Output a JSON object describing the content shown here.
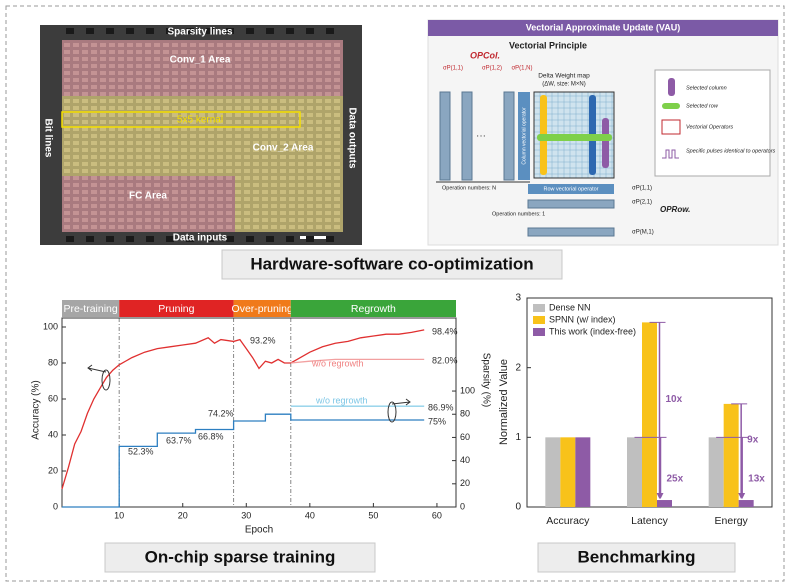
{
  "captions": [
    "Hardware-software co-optimization",
    "On-chip sparse training",
    "Benchmarking"
  ],
  "chip_photo": {
    "labels": [
      "Sparsity lines",
      "Conv_1 Area",
      "5x5 kernal",
      "Conv_2 Area",
      "Bit lines",
      "Data outputs",
      "FC Area",
      "Data inputs"
    ]
  },
  "vau_diagram": {
    "title": "Vectorial Approximate Update (VAU)",
    "subtitle": "Vectorial Principle",
    "op_col": "OPCol.",
    "op_row": "OPRow.",
    "pulses": [
      "σP(1,1)",
      "σP(1,2)",
      "σP(1,N)",
      "σP(1,1)",
      "σP(2,1)",
      "σP(M,1)"
    ],
    "map_title": "Delta Weight map",
    "map_size": "(ΔW, size: M×N)",
    "column_operator": "Column vectorial operator",
    "row_operator": "Row vectorial operator",
    "operation_n": "Operation numbers: N",
    "operation_1": "Operation numbers: 1",
    "legend": [
      "Selected column",
      "Selected row",
      "Vectorial Operators",
      "Specific pulses identical to operators"
    ]
  },
  "chart_data": [
    {
      "type": "line",
      "xlabel": "Epoch",
      "ylabel": "Accuracy (%)",
      "y2label": "Sparsity (%)",
      "xlim": [
        1,
        63
      ],
      "xticks": [
        10,
        20,
        30,
        40,
        50,
        60
      ],
      "ylim": [
        0,
        105
      ],
      "yticks": [
        0,
        20,
        40,
        60,
        80,
        100
      ],
      "y2lim": [
        0,
        163
      ],
      "y2ticks": [
        0,
        20,
        40,
        60,
        80,
        100
      ],
      "phases": [
        {
          "name": "Pre-training",
          "start": 1,
          "end": 10,
          "color": "#a6a6a6"
        },
        {
          "name": "Pruning",
          "start": 10,
          "end": 28,
          "color": "#e02424"
        },
        {
          "name": "Over-pruning",
          "start": 28,
          "end": 37,
          "color": "#f07a1a"
        },
        {
          "name": "Regrowth",
          "start": 37,
          "end": 63,
          "color": "#3aa53a"
        }
      ],
      "series": [
        {
          "color": "#e03030",
          "x": [
            1,
            2,
            3,
            4,
            5,
            6,
            7,
            8,
            9,
            10,
            12,
            14,
            16,
            18,
            20,
            22,
            24,
            25,
            26,
            28,
            29,
            30,
            31,
            32,
            33,
            34,
            35,
            36,
            37,
            38,
            40,
            42,
            44,
            46,
            48,
            50,
            52,
            54,
            56,
            58
          ],
          "values": [
            10,
            22,
            35,
            42,
            52,
            60,
            66,
            72,
            76,
            79,
            83,
            86,
            88,
            89,
            90,
            91,
            94,
            91,
            93,
            92,
            93,
            88,
            83,
            77,
            81,
            80,
            82,
            80,
            80,
            82,
            86,
            89,
            91,
            92,
            94,
            95,
            96,
            96,
            97,
            98.4
          ]
        },
        {
          "color": "#f2a0a0",
          "x": [
            37,
            40,
            44,
            48,
            52,
            56,
            58
          ],
          "values": [
            80,
            81,
            82,
            82,
            82,
            82,
            82
          ]
        },
        {
          "color": "#2d7fc1",
          "axis": "y2",
          "x": [
            1,
            10,
            10,
            16,
            16,
            22,
            22,
            28,
            28,
            33,
            33,
            37,
            37,
            58
          ],
          "values": [
            0,
            0,
            52.3,
            52.3,
            63.7,
            63.7,
            66.8,
            66.8,
            74.2,
            74.2,
            80,
            80,
            75,
            75
          ]
        },
        {
          "color": "#8fd0ea",
          "axis": "y2",
          "x": [
            37,
            58
          ],
          "values": [
            86.9,
            86.9
          ]
        }
      ],
      "annotations": [
        "93.2%",
        "98.4%",
        "w/o regrowth",
        "82.0%",
        "w/o regrowth",
        "86.9%",
        "75%",
        "74.2%",
        "66.8%",
        "63.7%",
        "52.3%"
      ]
    },
    {
      "type": "bar",
      "ylabel": "Normalized Value",
      "categories": [
        "Accuracy",
        "Latency",
        "Energy"
      ],
      "ylim": [
        0,
        3
      ],
      "yticks": [
        0,
        1,
        2,
        3
      ],
      "legend": "upper left",
      "series": [
        {
          "name": "Dense NN",
          "color": "#bfbfbf",
          "values": [
            1,
            1,
            1
          ]
        },
        {
          "name": "SPNN (w/ index)",
          "color": "#f8c21a",
          "values": [
            1,
            2.65,
            1.48
          ]
        },
        {
          "name": "This work (index-free)",
          "color": "#8e5ba6",
          "values": [
            1,
            0.1,
            0.1
          ]
        }
      ],
      "annotations": [
        "25x",
        "10x",
        "13x",
        "9x"
      ]
    }
  ]
}
